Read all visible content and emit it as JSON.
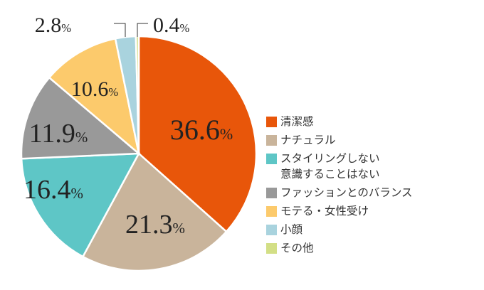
{
  "chart_data": {
    "type": "pie",
    "start_angle": "top",
    "direction": "clockwise",
    "slices": [
      {
        "label": "清潔感",
        "value": 36.6,
        "color": "#e8560a"
      },
      {
        "label": "ナチュラル",
        "value": 21.3,
        "color": "#c9b49b"
      },
      {
        "label": "スタイリングしない\n意識することはない",
        "label_lines": [
          "スタイリングしない",
          "意識することはない"
        ],
        "value": 16.4,
        "color": "#5ec6c6"
      },
      {
        "label": "ファッションとのバランス",
        "value": 11.9,
        "color": "#999999"
      },
      {
        "label": "モテる・女性受け",
        "value": 10.6,
        "color": "#fcca6c"
      },
      {
        "label": "小顔",
        "value": 2.8,
        "color": "#a9d3de"
      },
      {
        "label": "その他",
        "value": 0.4,
        "color": "#d3df86"
      }
    ],
    "data_labels": [
      "36.6",
      "21.3",
      "16.4",
      "11.9",
      "10.6",
      "2.8",
      "0.4"
    ],
    "unit": "%",
    "legend": "right"
  }
}
